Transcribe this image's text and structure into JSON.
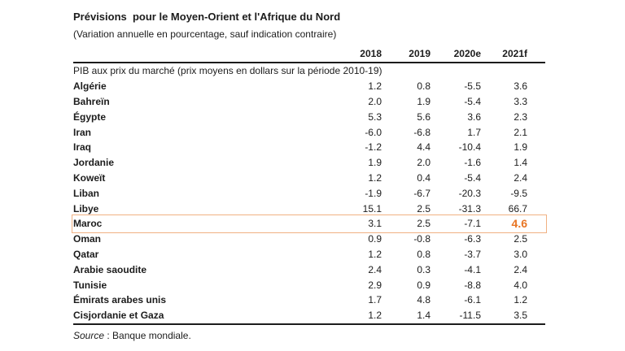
{
  "title": "Prévisions  pour le Moyen-Orient et l'Afrique du Nord",
  "subtitle": "(Variation annuelle en pourcentage, sauf indication contraire)",
  "table": {
    "year_headers": [
      "2018",
      "2019",
      "2020e",
      "2021f"
    ],
    "section_header": "PIB aux prix du marché (prix moyens en dollars sur la période 2010-19)",
    "rows": [
      {
        "country": "Algérie",
        "values": [
          "1.2",
          "0.8",
          "-5.5",
          "3.6"
        ],
        "highlighted": false
      },
      {
        "country": "Bahreïn",
        "values": [
          "2.0",
          "1.9",
          "-5.4",
          "3.3"
        ],
        "highlighted": false
      },
      {
        "country": "Égypte",
        "values": [
          "5.3",
          "5.6",
          "3.6",
          "2.3"
        ],
        "highlighted": false
      },
      {
        "country": "Iran",
        "values": [
          "-6.0",
          "-6.8",
          "1.7",
          "2.1"
        ],
        "highlighted": false
      },
      {
        "country": "Iraq",
        "values": [
          "-1.2",
          "4.4",
          "-10.4",
          "1.9"
        ],
        "highlighted": false
      },
      {
        "country": "Jordanie",
        "values": [
          "1.9",
          "2.0",
          "-1.6",
          "1.4"
        ],
        "highlighted": false
      },
      {
        "country": "Koweït",
        "values": [
          "1.2",
          "0.4",
          "-5.4",
          "2.4"
        ],
        "highlighted": false
      },
      {
        "country": "Liban",
        "values": [
          "-1.9",
          "-6.7",
          "-20.3",
          "-9.5"
        ],
        "highlighted": false
      },
      {
        "country": "Libye",
        "values": [
          "15.1",
          "2.5",
          "-31.3",
          "66.7"
        ],
        "highlighted": false
      },
      {
        "country": "Maroc",
        "values": [
          "3.1",
          "2.5",
          "-7.1",
          "4.6"
        ],
        "highlighted": true
      },
      {
        "country": "Oman",
        "values": [
          "0.9",
          "-0.8",
          "-6.3",
          "2.5"
        ],
        "highlighted": false
      },
      {
        "country": "Qatar",
        "values": [
          "1.2",
          "0.8",
          "-3.7",
          "3.0"
        ],
        "highlighted": false
      },
      {
        "country": "Arabie saoudite",
        "values": [
          "2.4",
          "0.3",
          "-4.1",
          "2.4"
        ],
        "highlighted": false
      },
      {
        "country": "Tunisie",
        "values": [
          "2.9",
          "0.9",
          "-8.8",
          "4.0"
        ],
        "highlighted": false
      },
      {
        "country": "Émirats arabes unis",
        "values": [
          "1.7",
          "4.8",
          "-6.1",
          "1.2"
        ],
        "highlighted": false
      },
      {
        "country": "Cisjordanie et Gaza",
        "values": [
          "1.2",
          "1.4",
          "-11.5",
          "3.5"
        ],
        "highlighted": false
      }
    ]
  },
  "source": {
    "label": "Source",
    "text": " : Banque mondiale."
  },
  "colors": {
    "highlight_text": "#e87524",
    "highlight_border": "#f0b183",
    "rule": "#1c1c1c"
  }
}
